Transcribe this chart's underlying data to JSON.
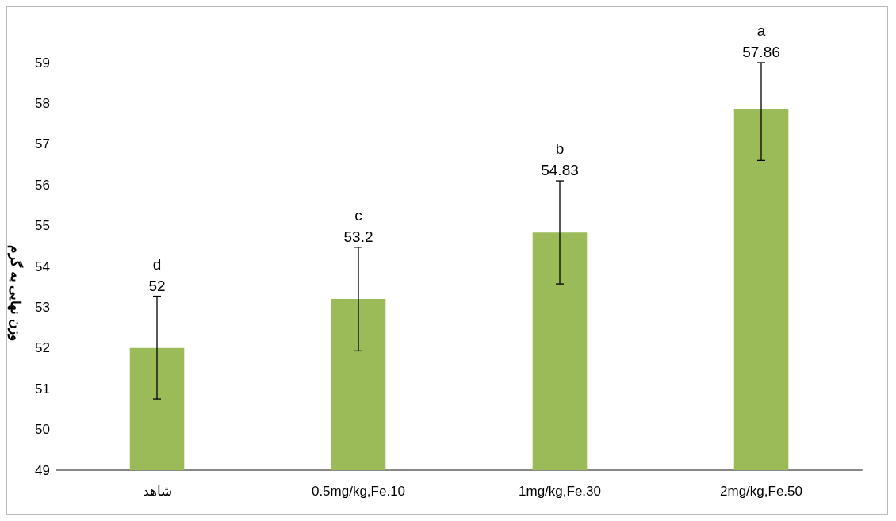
{
  "chart_data": {
    "type": "bar",
    "ylabel": "وزن نهایی به گرم",
    "categories": [
      "شاهد",
      "0.5mg/kg,Fe.10",
      "1mg/kg,Fe.30",
      "2mg/kg,Fe.50"
    ],
    "values": [
      52,
      53.2,
      54.83,
      57.86
    ],
    "color": "#9bbb59",
    "errors": [
      [
        50.75,
        53.27
      ],
      [
        51.93,
        54.47
      ],
      [
        53.57,
        56.1
      ],
      [
        56.6,
        59
      ]
    ],
    "annotations": [
      {
        "text": "52",
        "x": "شاهد",
        "y": 53.27
      },
      {
        "text": "d",
        "x": "شاهد",
        "y": 53.27
      },
      {
        "text": "53.2",
        "x": "0.5mg/kg,Fe.10",
        "y": 54.47
      },
      {
        "text": "c",
        "x": "0.5mg/kg,Fe.10",
        "y": 54.47
      },
      {
        "text": "54.83",
        "x": "1mg/kg,Fe.30",
        "y": 56.1
      },
      {
        "text": "b",
        "x": "1mg/kg,Fe.30",
        "y": 56.1
      },
      {
        "text": "57.86",
        "x": "2mg/kg,Fe.50",
        "y": 59
      },
      {
        "text": "a",
        "x": "2mg/kg,Fe.50",
        "y": 59
      }
    ],
    "ylim": [
      49,
      59
    ],
    "yticks": [
      49,
      50,
      51,
      52,
      53,
      54,
      55,
      56,
      57,
      58,
      59
    ],
    "grid": false
  }
}
